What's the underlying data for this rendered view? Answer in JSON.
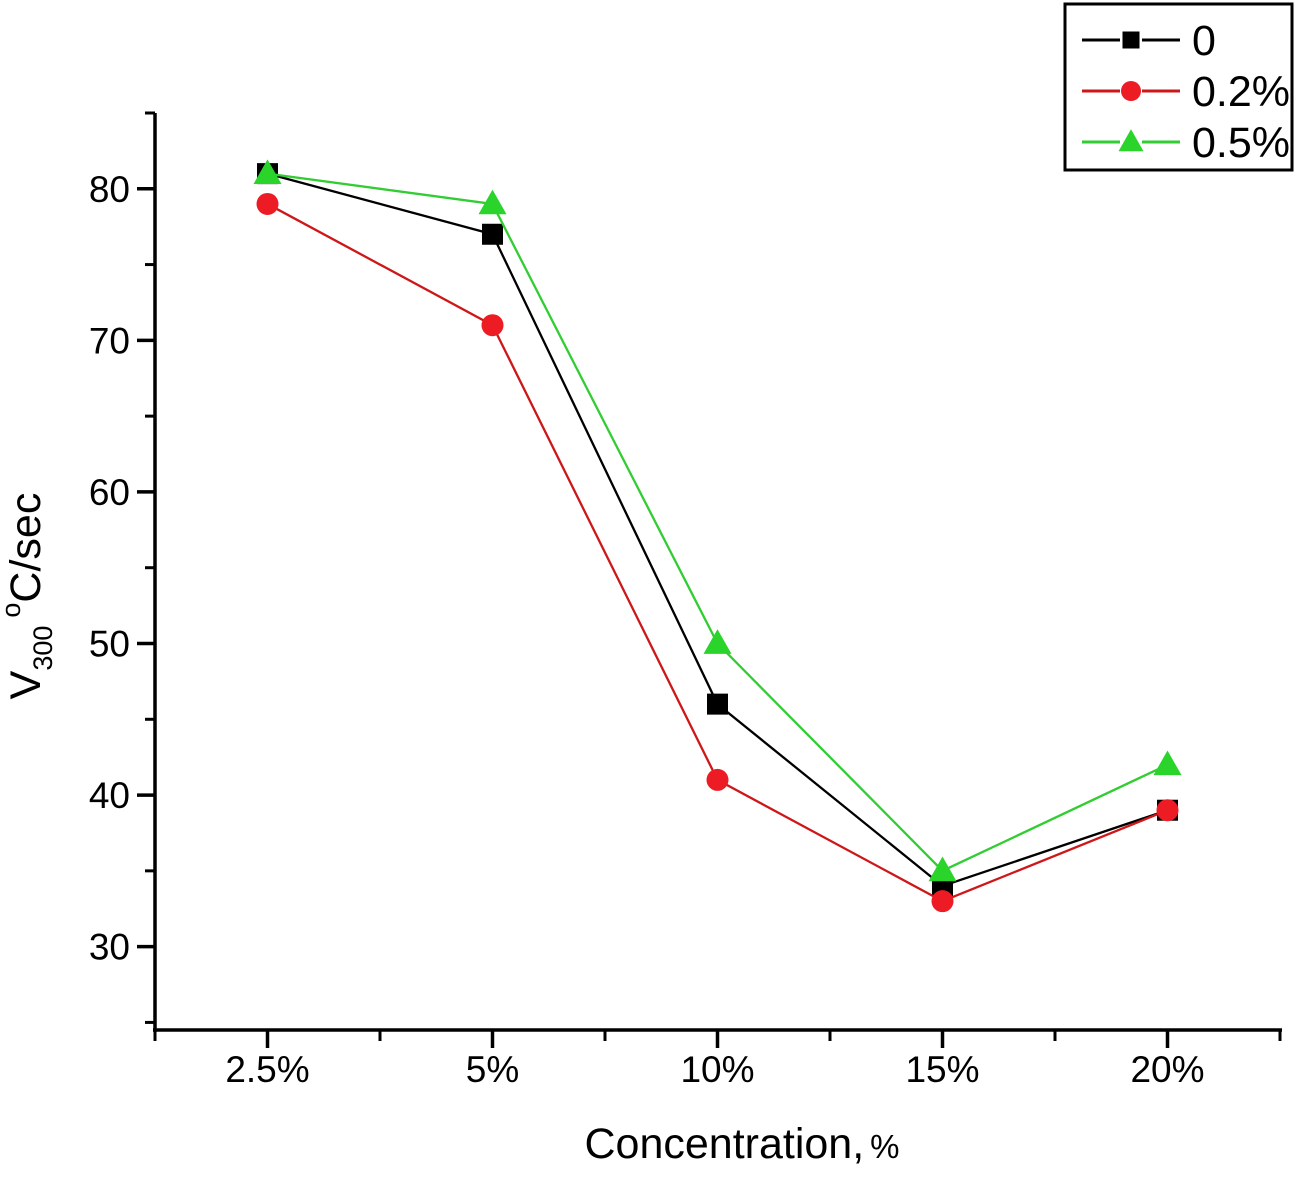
{
  "chart_data": {
    "type": "line",
    "title": "",
    "xlabel": "Concentration, %",
    "xlabel_parts": {
      "main": "Concentration,",
      "unit": "%"
    },
    "ylabel": "V300 °C/sec",
    "ylabel_parts": {
      "prefix": "V",
      "sub": "300",
      "sup": "o",
      "suffix": "C/sec"
    },
    "categories": [
      "2.5%",
      "5%",
      "10%",
      "15%",
      "20%"
    ],
    "series": [
      {
        "name": "0",
        "marker": "square",
        "marker_color": "#000000",
        "line_color": "#000000",
        "values": [
          81,
          77,
          46,
          34,
          39
        ]
      },
      {
        "name": "0.2%",
        "marker": "circle",
        "marker_color": "#ed1c24",
        "line_color": "#cd1719",
        "values": [
          79,
          71,
          41,
          33,
          39
        ]
      },
      {
        "name": "0.5%",
        "marker": "triangle",
        "marker_color": "#2bd42b",
        "line_color": "#32cd32",
        "values": [
          81,
          79,
          50,
          35,
          42
        ]
      }
    ],
    "yticks": [
      30,
      40,
      50,
      60,
      70,
      80
    ],
    "yminor": [
      25,
      35,
      45,
      55,
      65,
      75,
      85
    ],
    "ylim": [
      24.5,
      85
    ],
    "grid": false,
    "legend_position": "top-right",
    "axis_color": "#000000",
    "legend_border_color": "#000000",
    "background": "#ffffff"
  }
}
